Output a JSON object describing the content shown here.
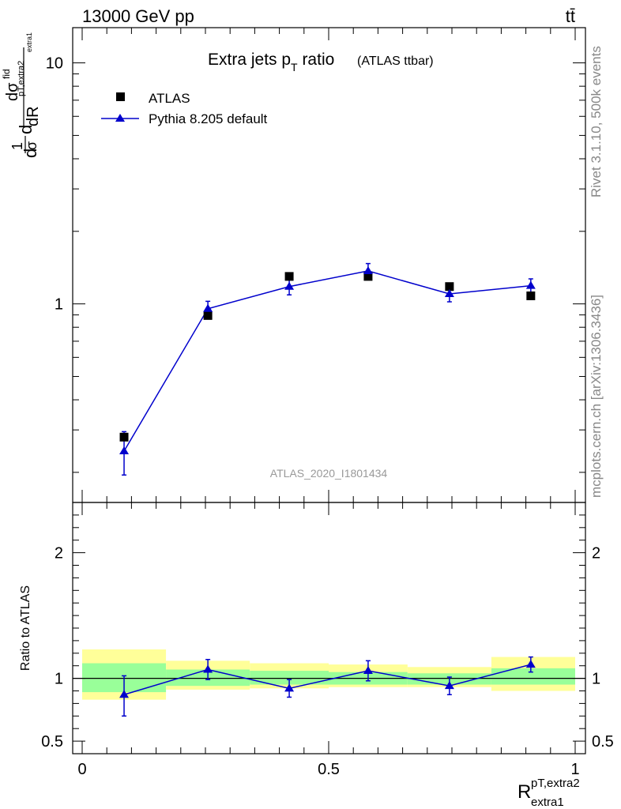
{
  "header": {
    "left": "13000 GeV pp",
    "right": "tt̄"
  },
  "side_labels": {
    "rivet": "Rivet 3.1.10,  500k events",
    "mcplots": "mcplots.cern.ch [arXiv:1306.3436]"
  },
  "chart_data": {
    "type": "scatter",
    "title_main": "Extra jets p",
    "title_sub": "T",
    "title_rest": " ratio",
    "title_tag": "(ATLAS ttbar)",
    "analysis_id": "ATLAS_2020_I1801434",
    "ylabel": "dσ/dR (1/σ)",
    "ylabel_parts": {
      "n1": "1",
      "d1": "σ",
      "n2": "dσ",
      "sup2": "fid",
      "d2": "dR",
      "sub_a": "pT,extra2",
      "sub_b": "extra1",
      "lead": "d",
      "lead2": "d"
    },
    "xlabel_main": "R",
    "xlabel_sup": "pT,extra2",
    "xlabel_sub": "extra1",
    "xlim": [
      0,
      1
    ],
    "ylim_log": [
      0.15,
      14
    ],
    "x_ticks": [
      "0",
      "0.5",
      "1"
    ],
    "x_tick_values": [
      0,
      0.5,
      1
    ],
    "y_ticks": [
      "1",
      "10"
    ],
    "y_tick_values": [
      1,
      10
    ],
    "legend": [
      {
        "name": "ATLAS",
        "marker": "square",
        "color": "#000000"
      },
      {
        "name": "Pythia 8.205 default",
        "marker": "triangle",
        "color": "#0000cc"
      }
    ],
    "bins": [
      [
        0,
        0.17
      ],
      [
        0.17,
        0.34
      ],
      [
        0.34,
        0.5
      ],
      [
        0.5,
        0.66
      ],
      [
        0.66,
        0.83
      ],
      [
        0.83,
        1.0
      ]
    ],
    "series": [
      {
        "name": "ATLAS",
        "x": [
          0.085,
          0.255,
          0.42,
          0.58,
          0.745,
          0.91
        ],
        "values": [
          0.28,
          0.895,
          1.3,
          1.3,
          1.18,
          1.08
        ]
      },
      {
        "name": "Pythia 8.205 default",
        "x": [
          0.085,
          0.255,
          0.42,
          0.58,
          0.745,
          0.91
        ],
        "values": [
          0.245,
          0.955,
          1.18,
          1.37,
          1.1,
          1.19
        ],
        "err_lo": [
          0.05,
          0.07,
          0.09,
          0.1,
          0.08,
          0.08
        ],
        "err_hi": [
          0.05,
          0.07,
          0.09,
          0.1,
          0.08,
          0.08
        ]
      }
    ],
    "ratio": {
      "ylabel": "Ratio to ATLAS",
      "ylim": [
        0.4,
        2.4
      ],
      "y_ticks": [
        "0.5",
        "1",
        "2"
      ],
      "y_tick_values": [
        0.5,
        1,
        2
      ],
      "values": [
        0.87,
        1.07,
        0.92,
        1.06,
        0.94,
        1.11
      ],
      "err_lo": [
        0.17,
        0.08,
        0.07,
        0.08,
        0.07,
        0.06
      ],
      "err_hi": [
        0.15,
        0.08,
        0.07,
        0.08,
        0.07,
        0.06
      ],
      "band_green": [
        [
          0.89,
          1.12
        ],
        [
          0.94,
          1.07
        ],
        [
          0.95,
          1.06
        ],
        [
          0.95,
          1.05
        ],
        [
          0.95,
          1.04
        ],
        [
          0.95,
          1.08
        ]
      ],
      "band_yellow": [
        [
          0.83,
          1.23
        ],
        [
          0.91,
          1.14
        ],
        [
          0.92,
          1.12
        ],
        [
          0.93,
          1.11
        ],
        [
          0.93,
          1.09
        ],
        [
          0.9,
          1.17
        ]
      ]
    }
  }
}
